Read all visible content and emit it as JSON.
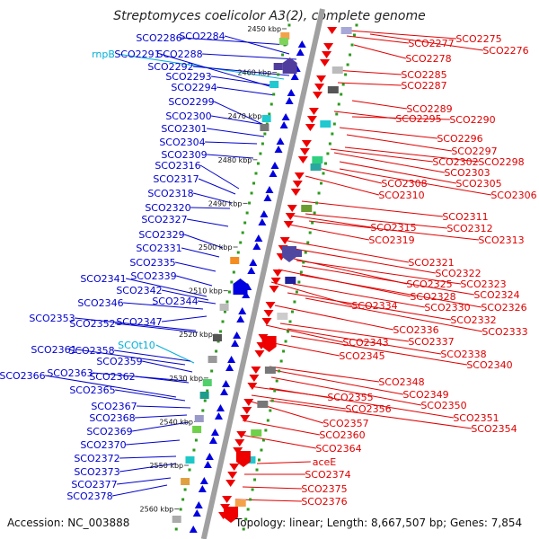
{
  "title": "Streptomyces coelicolor A3(2), complete genome",
  "footer": {
    "accession": "Accession: NC_003888",
    "topology": "Topology: linear; Length: 8,667,507 bp; Genes: 7,854"
  },
  "colors": {
    "left_genes": "#0000cc",
    "left_rna": "#00b0d8",
    "right_genes": "#e00000",
    "scale_dots": "#2e9a1e",
    "genome_line": "#a0a0a0"
  },
  "kbp_ticks": [
    "2450 kbp",
    "2460 kbp",
    "2470 kbp",
    "2480 kbp",
    "2490 kbp",
    "2500 kbp",
    "2510 kbp",
    "2520 kbp",
    "2530 kbp",
    "2540 kbp",
    "2550 kbp",
    "2560 kbp"
  ],
  "left_labels": [
    {
      "text": "SCO2284",
      "kind": "gene"
    },
    {
      "text": "SCO2286",
      "kind": "gene"
    },
    {
      "text": "rnpB",
      "kind": "rna"
    },
    {
      "text": "SCO2291",
      "kind": "gene"
    },
    {
      "text": "SCO2288",
      "kind": "gene"
    },
    {
      "text": "SCO2292",
      "kind": "gene"
    },
    {
      "text": "SCO2293",
      "kind": "gene"
    },
    {
      "text": "SCO2294",
      "kind": "gene"
    },
    {
      "text": "SCO2299",
      "kind": "gene"
    },
    {
      "text": "SCO2300",
      "kind": "gene"
    },
    {
      "text": "SCO2301",
      "kind": "gene"
    },
    {
      "text": "SCO2304",
      "kind": "gene"
    },
    {
      "text": "SCO2309",
      "kind": "gene"
    },
    {
      "text": "SCO2316",
      "kind": "gene"
    },
    {
      "text": "SCO2317",
      "kind": "gene"
    },
    {
      "text": "SCO2318",
      "kind": "gene"
    },
    {
      "text": "SCO2320",
      "kind": "gene"
    },
    {
      "text": "SCO2327",
      "kind": "gene"
    },
    {
      "text": "SCO2329",
      "kind": "gene"
    },
    {
      "text": "SCO2331",
      "kind": "gene"
    },
    {
      "text": "SCO2335",
      "kind": "gene"
    },
    {
      "text": "SCO2339",
      "kind": "gene"
    },
    {
      "text": "SCO2341",
      "kind": "gene"
    },
    {
      "text": "SCO2342",
      "kind": "gene"
    },
    {
      "text": "SCO2346",
      "kind": "gene"
    },
    {
      "text": "SCO2344",
      "kind": "gene"
    },
    {
      "text": "SCO2353",
      "kind": "gene"
    },
    {
      "text": "SCO2352",
      "kind": "gene"
    },
    {
      "text": "SCO2347",
      "kind": "gene"
    },
    {
      "text": "SCOt10",
      "kind": "rna"
    },
    {
      "text": "SCO2361",
      "kind": "gene"
    },
    {
      "text": "SCO2358",
      "kind": "gene"
    },
    {
      "text": "SCO2359",
      "kind": "gene"
    },
    {
      "text": "SCO2363",
      "kind": "gene"
    },
    {
      "text": "SCO2362",
      "kind": "gene"
    },
    {
      "text": "SCO2366",
      "kind": "gene"
    },
    {
      "text": "SCO2365",
      "kind": "gene"
    },
    {
      "text": "SCO2367",
      "kind": "gene"
    },
    {
      "text": "SCO2368",
      "kind": "gene"
    },
    {
      "text": "SCO2369",
      "kind": "gene"
    },
    {
      "text": "SCO2370",
      "kind": "gene"
    },
    {
      "text": "SCO2372",
      "kind": "gene"
    },
    {
      "text": "SCO2373",
      "kind": "gene"
    },
    {
      "text": "SCO2377",
      "kind": "gene"
    },
    {
      "text": "SCO2378",
      "kind": "gene"
    }
  ],
  "right_labels": [
    "SCO2275",
    "SCO2277",
    "SCO2276",
    "SCO2278",
    "SCO2285",
    "SCO2287",
    "SCO2289",
    "SCO2295",
    "SCO2290",
    "SCO2296",
    "SCO2297",
    "SCO2302",
    "SCO2298",
    "SCO2303",
    "SCO2308",
    "SCO2305",
    "SCO2310",
    "SCO2306",
    "SCO2311",
    "SCO2315",
    "SCO2312",
    "SCO2319",
    "SCO2313",
    "SCO2321",
    "SCO2322",
    "SCO2325",
    "SCO2323",
    "SCO2328",
    "SCO2324",
    "SCO2334",
    "SCO2330",
    "SCO2326",
    "SCO2332",
    "SCO2336",
    "SCO2333",
    "SCO2343",
    "SCO2337",
    "SCO2338",
    "SCO2345",
    "SCO2340",
    "SCO2348",
    "SCO2349",
    "SCO2355",
    "SCO2350",
    "SCO2356",
    "SCO2351",
    "SCO2357",
    "SCO2354",
    "SCO2360",
    "SCO2364",
    "aceE",
    "SCO2374",
    "SCO2375",
    "SCO2376"
  ]
}
